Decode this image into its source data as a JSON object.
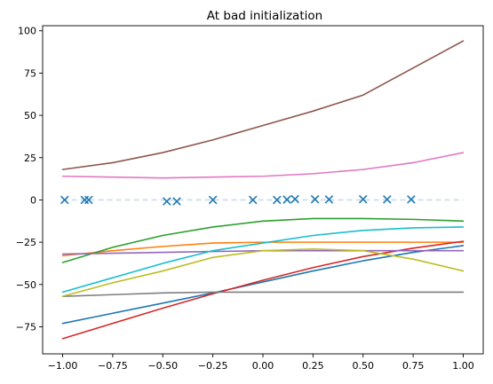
{
  "chart_data": {
    "type": "line",
    "title": "At bad initialization",
    "xlabel": "",
    "ylabel": "",
    "xlim": [
      -1.1,
      1.1
    ],
    "ylim": [
      -91,
      103
    ],
    "x_ticks": [
      -1.0,
      -0.75,
      -0.5,
      -0.25,
      0.0,
      0.25,
      0.5,
      0.75,
      1.0
    ],
    "x_tick_labels": [
      "−1.00",
      "−0.75",
      "−0.50",
      "−0.25",
      "0.00",
      "0.25",
      "0.50",
      "0.75",
      "1.00"
    ],
    "y_ticks": [
      -75,
      -50,
      -25,
      0,
      25,
      50,
      75,
      100
    ],
    "y_tick_labels": [
      "−75",
      "−50",
      "−25",
      "0",
      "25",
      "50",
      "75",
      "100"
    ],
    "grid": false,
    "x": [
      -1.0,
      -0.75,
      -0.5,
      -0.25,
      0.0,
      0.25,
      0.5,
      0.75,
      1.0
    ],
    "series": [
      {
        "color": "#1f77b4",
        "values": [
          -73,
          -67,
          -61,
          -55,
          -48.5,
          -42,
          -36,
          -31,
          -27
        ]
      },
      {
        "color": "#ff7f0e",
        "values": [
          -33,
          -30,
          -27.5,
          -25.5,
          -25,
          -25,
          -25,
          -25,
          -25
        ]
      },
      {
        "color": "#2ca02c",
        "values": [
          -37,
          -28,
          -21,
          -16,
          -12.5,
          -11,
          -11,
          -11.5,
          -12.5
        ]
      },
      {
        "color": "#d62728",
        "values": [
          -82,
          -73,
          -64,
          -55.5,
          -47.5,
          -40,
          -33.5,
          -28.5,
          -24.5
        ]
      },
      {
        "color": "#9467bd",
        "values": [
          -32,
          -31.5,
          -31,
          -30.5,
          -30,
          -30,
          -30,
          -30,
          -30
        ]
      },
      {
        "color": "#8c564b",
        "values": [
          18,
          22,
          28,
          35.5,
          44,
          52.5,
          62,
          78,
          94
        ]
      },
      {
        "color": "#e377c2",
        "values": [
          14,
          13.5,
          13,
          13.5,
          14,
          15.5,
          18,
          22,
          28
        ]
      },
      {
        "color": "#7f7f7f",
        "values": [
          -57,
          -56,
          -55,
          -54.5,
          -54.5,
          -54.5,
          -54.5,
          -54.5,
          -54.5
        ]
      },
      {
        "color": "#bcbd22",
        "values": [
          -57,
          -49,
          -42,
          -34,
          -30,
          -29,
          -30,
          -35,
          -42
        ]
      },
      {
        "color": "#17becf",
        "values": [
          -54.5,
          -46,
          -37.5,
          -30,
          -25.5,
          -21,
          -18,
          -16.5,
          -16
        ]
      },
      {
        "color": "#c6dbef",
        "dashed": true,
        "values": [
          0,
          0,
          0,
          0,
          0,
          0,
          0,
          0,
          0
        ]
      }
    ],
    "scatter": {
      "color": "#1f77b4",
      "marker": "x",
      "x": [
        -0.99,
        -0.89,
        -0.87,
        -0.48,
        -0.43,
        -0.25,
        -0.05,
        0.07,
        0.12,
        0.16,
        0.26,
        0.33,
        0.5,
        0.62,
        0.74
      ],
      "y": [
        0.0,
        0.0,
        0.0,
        -0.8,
        -0.8,
        0.0,
        0.0,
        0.0,
        0.2,
        0.5,
        0.4,
        0.3,
        0.4,
        0.3,
        0.3
      ]
    }
  }
}
